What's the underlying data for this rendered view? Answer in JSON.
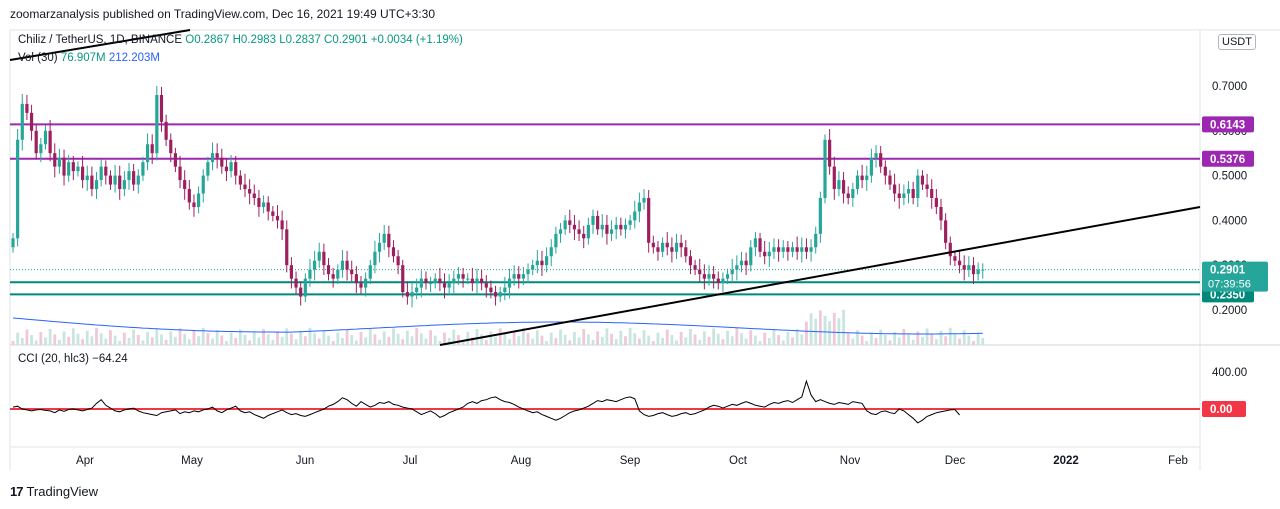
{
  "publish_line": "zoomarzanalysis published on TradingView.com, Dec 16, 2021 19:49 UTC+3:30",
  "legend": {
    "symbol": "Chiliz / TetherUS, 1D, BINANCE",
    "open": "O0.2867",
    "high": "H0.2983",
    "low": "L0.2837",
    "close": "C0.2901",
    "change": "+0.0034 (+1.19%)",
    "vol_label": "Vol (30)",
    "vol_value": "76.907M",
    "vol_ma": "212.203M",
    "cci_label": "CCI (20, hlc3)",
    "cci_value": "−64.24"
  },
  "currency": "USDT",
  "brand": {
    "logo": "17",
    "name": "TradingView"
  },
  "chart_data": {
    "type": "candlestick",
    "symbol": "CHZUSDT",
    "timeframe": "1D",
    "price_ticks": [
      "0.7000",
      "0.6000",
      "0.5000",
      "0.4000",
      "0.3000",
      "0.2000"
    ],
    "time_labels": [
      "Apr",
      "May",
      "Jun",
      "Jul",
      "Aug",
      "Sep",
      "Oct",
      "Nov",
      "Dec",
      "2022",
      "Feb"
    ],
    "levels": [
      {
        "label": "0.6143",
        "value": 0.6143,
        "color": "#9c27b0"
      },
      {
        "label": "0.5376",
        "value": 0.5376,
        "color": "#9c27b0"
      },
      {
        "label": "0.2620",
        "value": 0.262,
        "color": "#00897b"
      },
      {
        "label": "0.2350",
        "value": 0.235,
        "color": "#00897b"
      }
    ],
    "last_price": {
      "label": "0.2901",
      "value": 0.2901,
      "countdown": "07:39:56",
      "color": "#26a69a"
    },
    "candles_close": [
      0.36,
      0.58,
      0.66,
      0.64,
      0.6,
      0.55,
      0.57,
      0.6,
      0.55,
      0.52,
      0.54,
      0.5,
      0.53,
      0.51,
      0.52,
      0.49,
      0.5,
      0.47,
      0.49,
      0.52,
      0.5,
      0.48,
      0.5,
      0.47,
      0.49,
      0.51,
      0.48,
      0.5,
      0.53,
      0.57,
      0.55,
      0.68,
      0.62,
      0.58,
      0.55,
      0.52,
      0.49,
      0.47,
      0.44,
      0.43,
      0.46,
      0.5,
      0.53,
      0.55,
      0.54,
      0.52,
      0.51,
      0.53,
      0.5,
      0.48,
      0.47,
      0.46,
      0.45,
      0.43,
      0.44,
      0.42,
      0.41,
      0.4,
      0.38,
      0.3,
      0.27,
      0.25,
      0.23,
      0.27,
      0.29,
      0.31,
      0.33,
      0.3,
      0.28,
      0.27,
      0.29,
      0.31,
      0.29,
      0.28,
      0.26,
      0.25,
      0.27,
      0.3,
      0.33,
      0.35,
      0.37,
      0.34,
      0.32,
      0.3,
      0.24,
      0.23,
      0.24,
      0.25,
      0.27,
      0.26,
      0.26,
      0.27,
      0.26,
      0.25,
      0.26,
      0.27,
      0.28,
      0.27,
      0.27,
      0.26,
      0.27,
      0.26,
      0.25,
      0.24,
      0.23,
      0.24,
      0.25,
      0.27,
      0.28,
      0.27,
      0.28,
      0.29,
      0.3,
      0.31,
      0.3,
      0.32,
      0.34,
      0.37,
      0.38,
      0.4,
      0.39,
      0.38,
      0.37,
      0.36,
      0.39,
      0.41,
      0.38,
      0.39,
      0.37,
      0.38,
      0.39,
      0.38,
      0.39,
      0.4,
      0.42,
      0.44,
      0.45,
      0.35,
      0.34,
      0.33,
      0.35,
      0.34,
      0.33,
      0.35,
      0.34,
      0.32,
      0.3,
      0.29,
      0.28,
      0.27,
      0.28,
      0.27,
      0.26,
      0.27,
      0.28,
      0.29,
      0.3,
      0.31,
      0.3,
      0.34,
      0.36,
      0.33,
      0.32,
      0.33,
      0.34,
      0.33,
      0.34,
      0.33,
      0.34,
      0.33,
      0.34,
      0.33,
      0.34,
      0.37,
      0.45,
      0.58,
      0.52,
      0.47,
      0.49,
      0.46,
      0.45,
      0.47,
      0.5,
      0.49,
      0.5,
      0.54,
      0.55,
      0.52,
      0.5,
      0.48,
      0.46,
      0.45,
      0.46,
      0.47,
      0.45,
      0.5,
      0.48,
      0.47,
      0.45,
      0.43,
      0.4,
      0.35,
      0.32,
      0.31,
      0.3,
      0.29,
      0.3,
      0.28,
      0.29,
      0.2901
    ],
    "cci_values": [
      20,
      30,
      0,
      -10,
      -20,
      -10,
      -5,
      -15,
      -20,
      -40,
      -10,
      -25,
      -5,
      0,
      -10,
      -20,
      -5,
      10,
      60,
      100,
      40,
      10,
      -20,
      -30,
      -10,
      0,
      10,
      -20,
      -40,
      -50,
      -60,
      -70,
      -40,
      -30,
      -20,
      -10,
      -50,
      -30,
      -40,
      -20,
      -30,
      -10,
      0,
      20,
      -20,
      -40,
      -10,
      10,
      30,
      -20,
      -40,
      -30,
      -60,
      -80,
      -100,
      -70,
      -50,
      -30,
      -10,
      -40,
      -60,
      -50,
      -70,
      -80,
      -60,
      -40,
      -20,
      0,
      30,
      50,
      80,
      120,
      100,
      60,
      30,
      80,
      50,
      20,
      40,
      70,
      60,
      80,
      50,
      40,
      20,
      10,
      0,
      -30,
      -60,
      -40,
      -20,
      -50,
      -90,
      -70,
      -40,
      -20,
      0,
      20,
      60,
      80,
      60,
      90,
      100,
      120,
      130,
      100,
      80,
      70,
      50,
      20,
      0,
      -20,
      -40,
      -30,
      -60,
      -80,
      -100,
      -120,
      -100,
      -70,
      -40,
      -20,
      -10,
      10,
      30,
      60,
      90,
      80,
      100,
      90,
      80,
      100,
      120,
      130,
      110,
      -20,
      -60,
      -80,
      -70,
      -50,
      -40,
      -60,
      -80,
      -70,
      -50,
      -40,
      -60,
      -50,
      -30,
      -10,
      20,
      40,
      30,
      10,
      30,
      50,
      40,
      60,
      80,
      60,
      40,
      30,
      20,
      50,
      70,
      60,
      80,
      90,
      70,
      100,
      130,
      300,
      150,
      80,
      100,
      80,
      60,
      50,
      70,
      60,
      50,
      80,
      70,
      60,
      -20,
      -50,
      -60,
      -30,
      -20,
      -40,
      -50,
      0,
      -20,
      -60,
      -100,
      -150,
      -120,
      -80,
      -60,
      -40,
      -30,
      -20,
      -10,
      -5,
      -64.24
    ],
    "cci_axis": [
      {
        "label": "400.00",
        "value": 400
      },
      {
        "label": "0.00",
        "value": 0
      }
    ]
  }
}
